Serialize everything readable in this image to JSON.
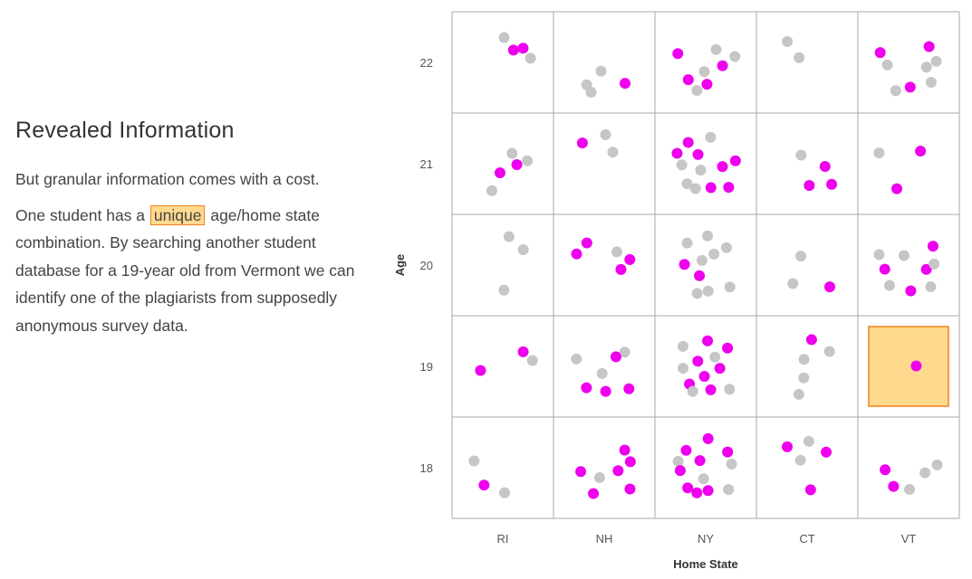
{
  "text": {
    "heading": "Revealed Information",
    "para1": "But granular information comes with a cost.",
    "para2_before": "One student has a",
    "para2_highlight": "unique",
    "para2_after": "age/home state combination. By searching another student database for a 19-year old from Vermont we can identify one of the plagiarists from supposedly anonymous survey data."
  },
  "colors": {
    "plagiarist": "#ee00ee",
    "non_plagiarist": "#c6c6c6",
    "highlight_fill": "#fed98e",
    "highlight_stroke": "#f0821e",
    "grid": "#aaaaaa"
  },
  "chart_data": {
    "type": "scatter",
    "title": "",
    "xlabel": "Home State",
    "ylabel": "Age",
    "x_categories": [
      "RI",
      "NH",
      "NY",
      "CT",
      "VT"
    ],
    "y_categories": [
      "22",
      "21",
      "20",
      "19",
      "18"
    ],
    "highlighted_cell": {
      "state": "VT",
      "age": "19"
    },
    "cells": [
      {
        "state": "RI",
        "age": "22",
        "magenta": 2,
        "gray": 2
      },
      {
        "state": "NH",
        "age": "22",
        "magenta": 1,
        "gray": 3
      },
      {
        "state": "NY",
        "age": "22",
        "magenta": 4,
        "gray": 4
      },
      {
        "state": "CT",
        "age": "22",
        "magenta": 0,
        "gray": 2
      },
      {
        "state": "VT",
        "age": "22",
        "magenta": 3,
        "gray": 5
      },
      {
        "state": "RI",
        "age": "21",
        "magenta": 2,
        "gray": 3
      },
      {
        "state": "NH",
        "age": "21",
        "magenta": 1,
        "gray": 2
      },
      {
        "state": "NY",
        "age": "21",
        "magenta": 7,
        "gray": 5
      },
      {
        "state": "CT",
        "age": "21",
        "magenta": 3,
        "gray": 1
      },
      {
        "state": "VT",
        "age": "21",
        "magenta": 2,
        "gray": 1
      },
      {
        "state": "RI",
        "age": "20",
        "magenta": 0,
        "gray": 3
      },
      {
        "state": "NH",
        "age": "20",
        "magenta": 4,
        "gray": 1
      },
      {
        "state": "NY",
        "age": "20",
        "magenta": 2,
        "gray": 8
      },
      {
        "state": "CT",
        "age": "20",
        "magenta": 1,
        "gray": 2
      },
      {
        "state": "VT",
        "age": "20",
        "magenta": 4,
        "gray": 5
      },
      {
        "state": "RI",
        "age": "19",
        "magenta": 2,
        "gray": 1
      },
      {
        "state": "NH",
        "age": "19",
        "magenta": 4,
        "gray": 3
      },
      {
        "state": "NY",
        "age": "19",
        "magenta": 7,
        "gray": 5
      },
      {
        "state": "CT",
        "age": "19",
        "magenta": 1,
        "gray": 4
      },
      {
        "state": "VT",
        "age": "19",
        "magenta": 1,
        "gray": 0
      },
      {
        "state": "RI",
        "age": "18",
        "magenta": 1,
        "gray": 2
      },
      {
        "state": "NH",
        "age": "18",
        "magenta": 6,
        "gray": 1
      },
      {
        "state": "NY",
        "age": "18",
        "magenta": 8,
        "gray": 4
      },
      {
        "state": "CT",
        "age": "18",
        "magenta": 3,
        "gray": 2
      },
      {
        "state": "VT",
        "age": "18",
        "magenta": 2,
        "gray": 3
      }
    ]
  }
}
